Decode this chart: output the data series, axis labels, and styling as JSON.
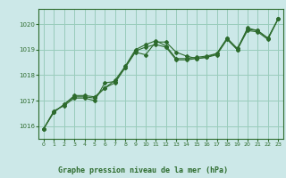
{
  "title": "Graphe pression niveau de la mer (hPa)",
  "bg_color": "#cce8e8",
  "grid_color": "#99ccbb",
  "line_color": "#2d6b2d",
  "marker_color": "#2d6b2d",
  "xlim": [
    -0.5,
    23.5
  ],
  "ylim": [
    1015.5,
    1020.6
  ],
  "yticks": [
    1016,
    1017,
    1018,
    1019,
    1020
  ],
  "xticks": [
    0,
    1,
    2,
    3,
    4,
    5,
    6,
    7,
    8,
    9,
    10,
    11,
    12,
    13,
    14,
    15,
    16,
    17,
    18,
    19,
    20,
    21,
    22,
    23
  ],
  "series1_x": [
    0,
    1,
    2,
    3,
    4,
    5,
    6,
    7,
    8,
    9,
    10,
    11,
    12,
    13,
    14,
    15,
    16,
    17,
    18,
    19,
    20,
    21,
    22,
    23
  ],
  "series1_y": [
    1015.9,
    1016.6,
    1016.8,
    1017.1,
    1017.1,
    1017.0,
    1017.7,
    1017.75,
    1018.3,
    1018.9,
    1018.8,
    1019.3,
    1019.3,
    1018.9,
    1018.75,
    1018.65,
    1018.7,
    1018.85,
    1019.45,
    1019.0,
    1019.85,
    1019.75,
    1019.45,
    1020.2
  ],
  "series2_x": [
    0,
    1,
    2,
    3,
    4,
    5,
    6,
    7,
    8,
    9,
    10,
    11,
    12,
    13,
    14,
    15,
    16,
    17,
    18,
    19,
    20,
    21,
    22,
    23
  ],
  "series2_y": [
    1015.9,
    1016.55,
    1016.85,
    1017.2,
    1017.2,
    1017.15,
    1017.5,
    1017.8,
    1018.35,
    1019.0,
    1019.2,
    1019.35,
    1019.15,
    1018.65,
    1018.65,
    1018.7,
    1018.75,
    1018.85,
    1019.45,
    1019.05,
    1019.8,
    1019.75,
    1019.45,
    1020.2
  ],
  "series3_x": [
    0,
    1,
    2,
    3,
    4,
    5,
    6,
    7,
    8,
    9,
    10,
    11,
    12,
    13,
    14,
    15,
    16,
    17,
    18,
    19,
    20,
    21,
    22,
    23
  ],
  "series3_y": [
    1015.9,
    1016.55,
    1016.85,
    1017.15,
    1017.15,
    1017.1,
    1017.5,
    1017.7,
    1018.3,
    1018.95,
    1019.1,
    1019.2,
    1019.1,
    1018.6,
    1018.6,
    1018.65,
    1018.7,
    1018.8,
    1019.4,
    1019.0,
    1019.75,
    1019.7,
    1019.4,
    1020.2
  ]
}
